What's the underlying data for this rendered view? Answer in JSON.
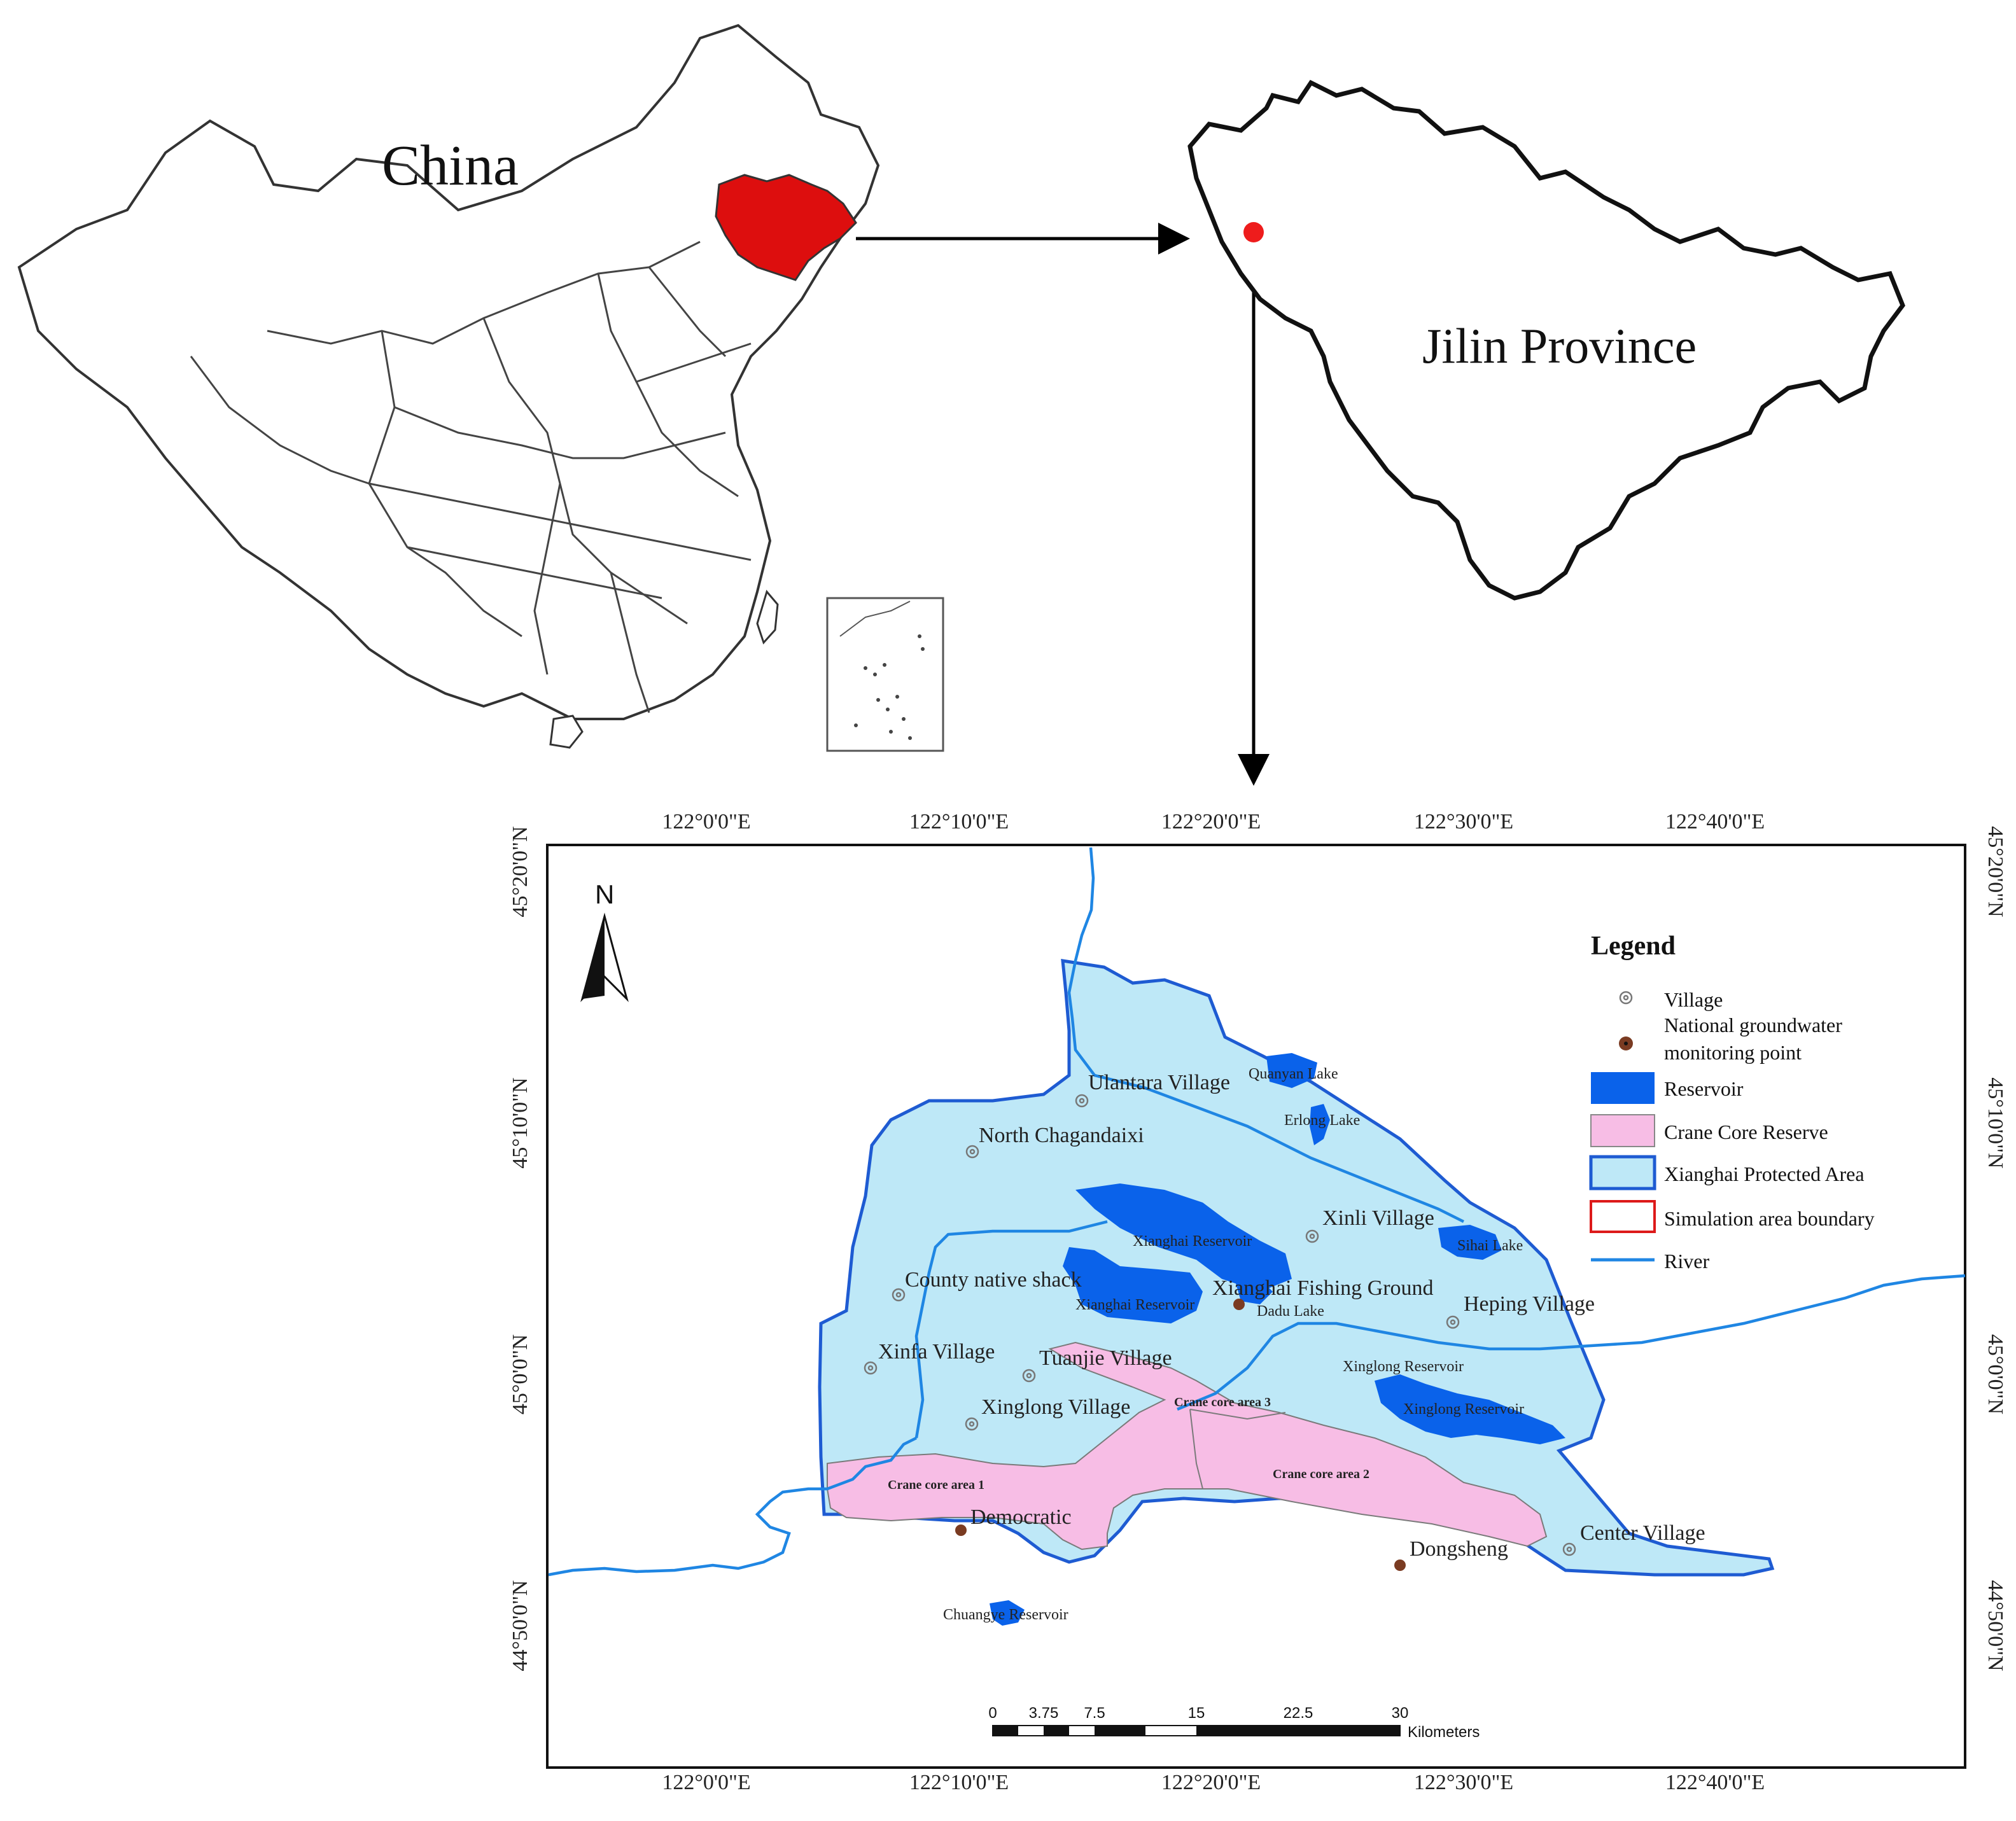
{
  "overview": {
    "china_label": "China",
    "province_label": "Jilin Province"
  },
  "colors": {
    "highlight": "#dd0e0e",
    "protected_area_fill": "#bee8f7",
    "protected_area_stroke": "#1e5bd2",
    "reservoir": "#0a62ea",
    "crane_core_fill": "#f7bde5",
    "simulation_boundary": "#dd1a1a",
    "river": "#1f86e3",
    "village_symbol": "#777777",
    "monitoring_point": "#7a3b22"
  },
  "axes": {
    "top_lon": [
      "122°0'0\"E",
      "122°10'0\"E",
      "122°20'0\"E",
      "122°30'0\"E",
      "122°40'0\"E"
    ],
    "bottom_lon": [
      "122°0'0\"E",
      "122°10'0\"E",
      "122°20'0\"E",
      "122°30'0\"E",
      "122°40'0\"E"
    ],
    "left_lat": [
      "45°20'0\"N",
      "45°10'0\"N",
      "45°0'0\"N",
      "44°50'0\"N"
    ],
    "right_lat": [
      "45°20'0\"N",
      "45°10'0\"N",
      "45°0'0\"N",
      "44°50'0\"N"
    ]
  },
  "north_arrow": "N",
  "legend": {
    "title": "Legend",
    "items": [
      {
        "label": "Village",
        "symbol": "village"
      },
      {
        "label": "National groundwater",
        "label2": "monitoring point",
        "symbol": "monitoring"
      },
      {
        "label": "Reservoir",
        "symbol": "reservoir"
      },
      {
        "label": "Crane Core Reserve",
        "symbol": "crane"
      },
      {
        "label": "Xianghai Protected Area",
        "symbol": "protected"
      },
      {
        "label": "Simulation area boundary",
        "symbol": "simulation"
      },
      {
        "label": "River",
        "symbol": "river"
      }
    ]
  },
  "villages": {
    "ulantara": "Ulantara Village",
    "north_chagandaixi": "North Chagandaixi",
    "xinli": "Xinli Village",
    "county_native_shack": "County native shack",
    "xianghai_fishing_ground": "Xianghai Fishing Ground",
    "heping": "Heping Village",
    "xinfa": "Xinfa Village",
    "tuanjie": "Tuanjie Village",
    "xinglong": "Xinglong Village",
    "center": "Center Village"
  },
  "monitoring_points": {
    "democratic": "Democratic",
    "dongsheng": "Dongsheng"
  },
  "water_bodies": {
    "quanyan": "Quanyan Lake",
    "erlong": "Erlong Lake",
    "sihai": "Sihai Lake",
    "xianghai_1": "Xianghai Reservoir",
    "xianghai_2": "Xianghai Reservoir",
    "dadu": "Dadu Lake",
    "xinglong_1": "Xinglong Reservoir",
    "xinglong_2": "Xinglong Reservoir",
    "chuangye": "Chuangye Reservoir"
  },
  "crane_areas": {
    "area1": "Crane core area 1",
    "area2": "Crane core area 2",
    "area3": "Crane core area 3"
  },
  "scale_bar": {
    "ticks": [
      "0",
      "3.75",
      "7.5",
      "15",
      "22.5",
      "30"
    ],
    "unit": "Kilometers"
  }
}
